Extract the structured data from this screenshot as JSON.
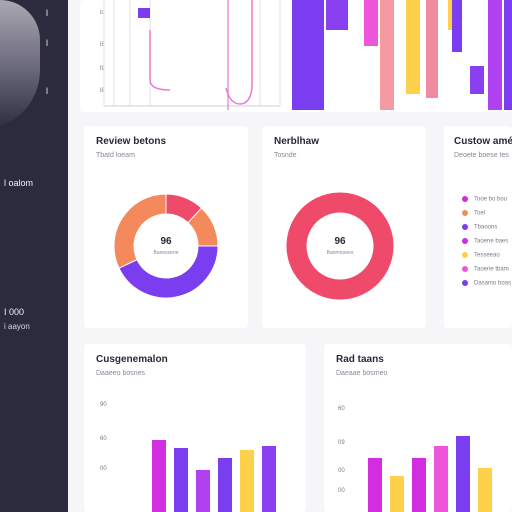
{
  "sidebar": {
    "lines": [
      "l",
      "l",
      "l",
      "l oalom",
      "I 000",
      "i aayon"
    ]
  },
  "top_chart": {
    "ticks": [
      "lo",
      "l8",
      "l9",
      "l8"
    ],
    "bar_colors": [
      "#7a3df0",
      "#8a3ff0",
      "#ee55dd",
      "#f59aa0",
      "#ffd04a",
      "#f08aa0",
      "#ffd04a",
      "#7a3df0",
      "#8a3ff0",
      "#b040f0",
      "#7a3df0",
      "#8a3ff0"
    ]
  },
  "card_review": {
    "title": "Review betons",
    "subtitle": "Tbatd loeam",
    "center_value": "96",
    "center_label": "Banessene"
  },
  "card_net": {
    "title": "Nerblhaw",
    "subtitle": "Tosnde",
    "center_value": "96",
    "center_label": "Banmnoees"
  },
  "card_custom": {
    "title": "Custow amém",
    "subtitle": "Deoete boese tes",
    "legend": [
      "Tooe bo bou",
      "Toel",
      "Tbaoons",
      "Taoene baes",
      "Tesseeao",
      "Taoene tbam",
      "Dasamo boas"
    ]
  },
  "card_cost": {
    "title": "Cusgenemalon",
    "subtitle": "Daaeeo bosnes",
    "ticks": [
      "90",
      "60",
      "00"
    ]
  },
  "card_red": {
    "title": "Rad taans",
    "subtitle": "Daeaae bosmeo",
    "ticks": [
      "60",
      "09",
      "00",
      "00"
    ]
  },
  "chart_data": [
    {
      "type": "pie",
      "title": "Review betons",
      "center_value": "96",
      "slices": [
        {
          "value": 12,
          "color": "#f04a6a"
        },
        {
          "value": 13,
          "color": "#f48a5c"
        },
        {
          "value": 43,
          "color": "#7a3df0"
        },
        {
          "value": 32,
          "color": "#f48a5c"
        }
      ]
    },
    {
      "type": "pie",
      "title": "Nerblhaw",
      "center_value": "96",
      "slices": [
        {
          "value": 100,
          "color": "#f04a6a"
        }
      ]
    },
    {
      "type": "bar",
      "title": "Cusgenemalon",
      "values": [
        72,
        64,
        42,
        54,
        62,
        66
      ],
      "colors": [
        "#d22de0",
        "#7a3df0",
        "#b040f0",
        "#7a3df0",
        "#ffd04a",
        "#8a3ff0"
      ]
    },
    {
      "type": "bar",
      "title": "Rad taans",
      "values": [
        54,
        36,
        54,
        66,
        76,
        44
      ],
      "colors": [
        "#d22de0",
        "#ffd04a",
        "#d22de0",
        "#ee55dd",
        "#7a3df0",
        "#ffd04a"
      ]
    }
  ]
}
